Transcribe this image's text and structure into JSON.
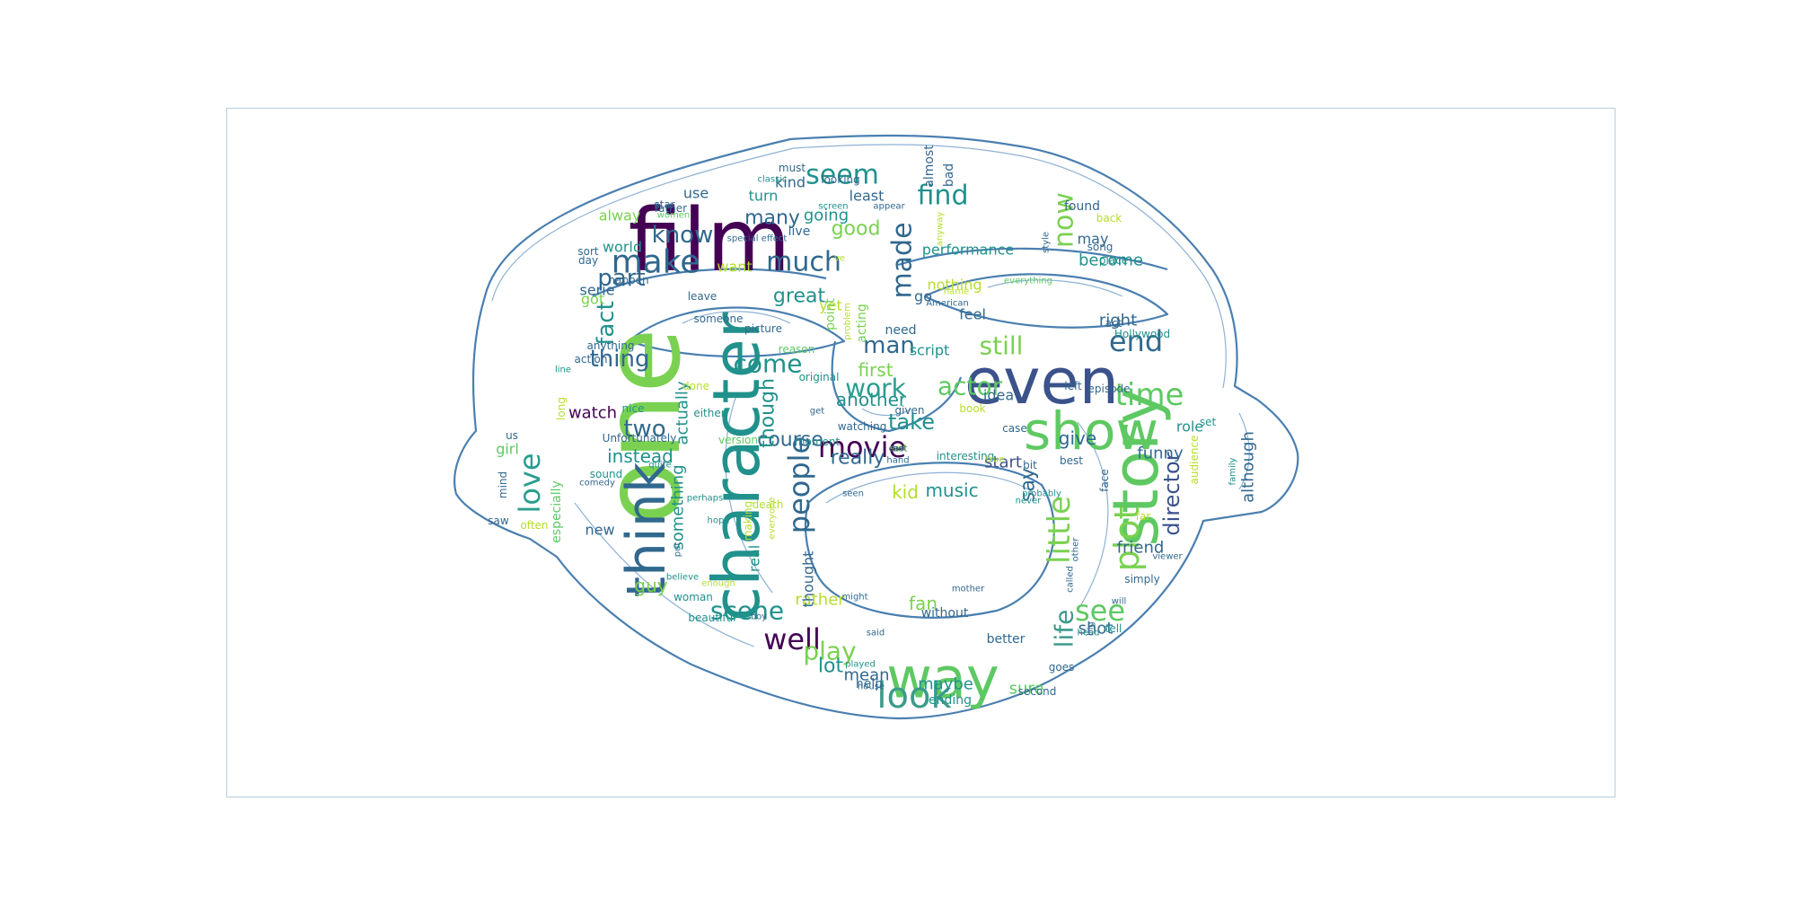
{
  "words": [
    {
      "t": "film",
      "c": "#440154"
    },
    {
      "t": "even",
      "c": "#3b528b"
    },
    {
      "t": "one",
      "c": "#7ad151"
    },
    {
      "t": "character",
      "c": "#21918c"
    },
    {
      "t": "show",
      "c": "#5ec962"
    },
    {
      "t": "way",
      "c": "#5ec962"
    },
    {
      "t": "story",
      "c": "#5ec962"
    },
    {
      "t": "movie",
      "c": "#440154"
    },
    {
      "t": "think",
      "c": "#31688e"
    },
    {
      "t": "look",
      "c": "#3b9b8a"
    },
    {
      "t": "make",
      "c": "#31688e"
    },
    {
      "t": "much",
      "c": "#31688e"
    },
    {
      "t": "plot",
      "c": "#7ad151"
    },
    {
      "t": "well",
      "c": "#440154"
    },
    {
      "t": "seem",
      "c": "#21918c"
    },
    {
      "t": "find",
      "c": "#21918c"
    },
    {
      "t": "know",
      "c": "#31688e"
    },
    {
      "t": "scene",
      "c": "#21918c"
    },
    {
      "t": "time",
      "c": "#5ec962"
    },
    {
      "t": "end",
      "c": "#31688e"
    },
    {
      "t": "work",
      "c": "#2a9d8f"
    },
    {
      "t": "little",
      "c": "#7ad151"
    },
    {
      "t": "see",
      "c": "#5ec962"
    },
    {
      "t": "play",
      "c": "#7ad151"
    },
    {
      "t": "love",
      "c": "#2a9d8f"
    },
    {
      "t": "made",
      "c": "#31688e"
    },
    {
      "t": "people",
      "c": "#31688e"
    },
    {
      "t": "come",
      "c": "#21918c"
    },
    {
      "t": "actor",
      "c": "#5ec962"
    },
    {
      "t": "still",
      "c": "#7ad151"
    },
    {
      "t": "man",
      "c": "#31688e"
    },
    {
      "t": "part",
      "c": "#31688e"
    },
    {
      "t": "now",
      "c": "#7ad151"
    },
    {
      "t": "director",
      "c": "#3b528b"
    },
    {
      "t": "life",
      "c": "#3b9b8a"
    },
    {
      "t": "two",
      "c": "#31688e"
    },
    {
      "t": "take",
      "c": "#21918c"
    },
    {
      "t": "thing",
      "c": "#31688e"
    },
    {
      "t": "great",
      "c": "#21918c"
    },
    {
      "t": "good",
      "c": "#7ad151"
    },
    {
      "t": "many",
      "c": "#31688e"
    },
    {
      "t": "fact",
      "c": "#21918c"
    },
    {
      "t": "lot",
      "c": "#21918c"
    },
    {
      "t": "really",
      "c": "#31688e"
    },
    {
      "t": "course",
      "c": "#31688e"
    },
    {
      "t": "give",
      "c": "#31688e"
    },
    {
      "t": "another",
      "c": "#21918c"
    },
    {
      "t": "first",
      "c": "#7ad151"
    },
    {
      "t": "kid",
      "c": "#b5de2b"
    },
    {
      "t": "music",
      "c": "#21918c"
    },
    {
      "t": "say",
      "c": "#31688e"
    },
    {
      "t": "though",
      "c": "#21918c"
    },
    {
      "t": "performance",
      "c": "#21918c"
    },
    {
      "t": "going",
      "c": "#21918c"
    },
    {
      "t": "funny",
      "c": "#31688e"
    },
    {
      "t": "right",
      "c": "#31688e"
    },
    {
      "t": "become",
      "c": "#21918c"
    },
    {
      "t": "friend",
      "c": "#31688e"
    },
    {
      "t": "instead",
      "c": "#21918c"
    },
    {
      "t": "watch",
      "c": "#440154"
    },
    {
      "t": "something",
      "c": "#21918c"
    },
    {
      "t": "actually",
      "c": "#21918c"
    },
    {
      "t": "maybe",
      "c": "#21918c"
    },
    {
      "t": "sure",
      "c": "#5ec962"
    },
    {
      "t": "start",
      "c": "#3b528b"
    },
    {
      "t": "guy",
      "c": "#7ad151"
    },
    {
      "t": "fan",
      "c": "#7ad151"
    },
    {
      "t": "rather",
      "c": "#b5de2b"
    },
    {
      "t": "shot",
      "c": "#31688e"
    },
    {
      "t": "although",
      "c": "#31688e"
    },
    {
      "t": "mean",
      "c": "#31688e"
    },
    {
      "t": "go",
      "c": "#31688e"
    },
    {
      "t": "feel",
      "c": "#31688e"
    },
    {
      "t": "want",
      "c": "#b5de2b"
    },
    {
      "t": "world",
      "c": "#21918c"
    },
    {
      "t": "alway",
      "c": "#7ad151"
    },
    {
      "t": "kind",
      "c": "#31688e"
    },
    {
      "t": "turn",
      "c": "#21918c"
    },
    {
      "t": "least",
      "c": "#31688e"
    },
    {
      "t": "use",
      "c": "#31688e"
    },
    {
      "t": "nothing",
      "c": "#b5de2b"
    },
    {
      "t": "yet",
      "c": "#b5de2b"
    },
    {
      "t": "script",
      "c": "#21918c"
    },
    {
      "t": "idea",
      "c": "#31688e"
    },
    {
      "t": "role",
      "c": "#21918c"
    },
    {
      "t": "may",
      "c": "#31688e"
    },
    {
      "t": "real",
      "c": "#21918c"
    },
    {
      "t": "thought",
      "c": "#31688e"
    },
    {
      "t": "new",
      "c": "#31688e"
    },
    {
      "t": "girl",
      "c": "#5ec962"
    },
    {
      "t": "especially",
      "c": "#5ec962"
    },
    {
      "t": "serie",
      "c": "#31688e"
    },
    {
      "t": "got",
      "c": "#7ad151"
    },
    {
      "t": "ending",
      "c": "#21918c"
    },
    {
      "t": "without",
      "c": "#31688e"
    },
    {
      "t": "better",
      "c": "#31688e"
    },
    {
      "t": "help",
      "c": "#31688e"
    },
    {
      "t": "need",
      "c": "#31688e"
    },
    {
      "t": "point",
      "c": "#7ad151"
    },
    {
      "t": "acting",
      "c": "#7ad151"
    },
    {
      "t": "almost",
      "c": "#31688e"
    },
    {
      "t": "bad",
      "c": "#31688e"
    },
    {
      "t": "looking",
      "c": "#31688e"
    },
    {
      "t": "must",
      "c": "#31688e"
    },
    {
      "t": "star",
      "c": "#31688e"
    },
    {
      "t": "father",
      "c": "#31688e"
    },
    {
      "t": "live",
      "c": "#31688e"
    },
    {
      "t": "found",
      "c": "#31688e"
    },
    {
      "t": "back",
      "c": "#b5de2b"
    },
    {
      "t": "song",
      "c": "#31688e"
    },
    {
      "t": "place",
      "c": "#21918c"
    },
    {
      "t": "sort",
      "c": "#31688e"
    },
    {
      "t": "day",
      "c": "#31688e"
    },
    {
      "t": "happen",
      "c": "#31688e"
    },
    {
      "t": "leave",
      "c": "#31688e"
    },
    {
      "t": "someone",
      "c": "#31688e"
    },
    {
      "t": "picture",
      "c": "#31688e"
    },
    {
      "t": "reason",
      "c": "#5ec962"
    },
    {
      "t": "original",
      "c": "#21918c"
    },
    {
      "t": "done",
      "c": "#b5de2b"
    },
    {
      "t": "either",
      "c": "#21918c"
    },
    {
      "t": "nice",
      "c": "#21918c"
    },
    {
      "t": "long",
      "c": "#b5de2b"
    },
    {
      "t": "anything",
      "c": "#31688e"
    },
    {
      "t": "action",
      "c": "#31688e"
    },
    {
      "t": "Unfortunately",
      "c": "#31688e"
    },
    {
      "t": "version",
      "c": "#5ec962"
    },
    {
      "t": "moment",
      "c": "#21918c"
    },
    {
      "t": "watching",
      "c": "#31688e"
    },
    {
      "t": "given",
      "c": "#31688e"
    },
    {
      "t": "book",
      "c": "#b5de2b"
    },
    {
      "t": "case",
      "c": "#31688e"
    },
    {
      "t": "interesting",
      "c": "#21918c"
    },
    {
      "t": "bit",
      "c": "#31688e"
    },
    {
      "t": "best",
      "c": "#31688e"
    },
    {
      "t": "face",
      "c": "#31688e"
    },
    {
      "t": "audience",
      "c": "#b5de2b"
    },
    {
      "t": "set",
      "c": "#21918c"
    },
    {
      "t": "left",
      "c": "#31688e"
    },
    {
      "t": "episode",
      "c": "#31688e"
    },
    {
      "t": "act",
      "c": "#31688e"
    },
    {
      "t": "Hollywood",
      "c": "#21918c"
    },
    {
      "t": "everything",
      "c": "#5ec962"
    },
    {
      "t": "name",
      "c": "#b5de2b"
    },
    {
      "t": "American",
      "c": "#31688e"
    },
    {
      "t": "style",
      "c": "#31688e"
    },
    {
      "t": "ve",
      "c": "#b5de2b"
    },
    {
      "t": "special effect",
      "c": "#31688e"
    },
    {
      "t": "screen",
      "c": "#21918c"
    },
    {
      "t": "appear",
      "c": "#31688e"
    },
    {
      "t": "classic",
      "c": "#21918c"
    },
    {
      "t": "women",
      "c": "#5ec962"
    },
    {
      "t": "anyway",
      "c": "#b5de2b"
    },
    {
      "t": "us",
      "c": "#31688e"
    },
    {
      "t": "mind",
      "c": "#31688e"
    },
    {
      "t": "saw",
      "c": "#31688e"
    },
    {
      "t": "sound",
      "c": "#21918c"
    },
    {
      "t": "comedy",
      "c": "#31688e"
    },
    {
      "t": "quite",
      "c": "#21918c"
    },
    {
      "t": "perhaps",
      "c": "#21918c"
    },
    {
      "t": "hope",
      "c": "#21918c"
    },
    {
      "t": "often",
      "c": "#b5de2b"
    },
    {
      "t": "making",
      "c": "#b5de2b"
    },
    {
      "t": "death",
      "c": "#b5de2b"
    },
    {
      "t": "everyone",
      "c": "#b5de2b"
    },
    {
      "t": "put",
      "c": "#31688e"
    },
    {
      "t": "believe",
      "c": "#21918c"
    },
    {
      "t": "enough",
      "c": "#b5de2b"
    },
    {
      "t": "woman",
      "c": "#21918c"
    },
    {
      "t": "beautiful",
      "c": "#21918c"
    },
    {
      "t": "boy",
      "c": "#31688e"
    },
    {
      "t": "said",
      "c": "#31688e"
    },
    {
      "t": "played",
      "c": "#21918c"
    },
    {
      "t": "house",
      "c": "#31688e"
    },
    {
      "t": "might",
      "c": "#31688e"
    },
    {
      "t": "mother",
      "c": "#31688e"
    },
    {
      "t": "second",
      "c": "#31688e"
    },
    {
      "t": "goes",
      "c": "#31688e"
    },
    {
      "t": "head",
      "c": "#21918c"
    },
    {
      "t": "tell",
      "c": "#21918c"
    },
    {
      "t": "will",
      "c": "#31688e"
    },
    {
      "t": "called",
      "c": "#31688e"
    },
    {
      "t": "other",
      "c": "#31688e"
    },
    {
      "t": "never",
      "c": "#21918c"
    },
    {
      "t": "probably",
      "c": "#21918c"
    },
    {
      "t": "viewer",
      "c": "#31688e"
    },
    {
      "t": "simply",
      "c": "#31688e"
    },
    {
      "t": "far",
      "c": "#b5de2b"
    },
    {
      "t": "family",
      "c": "#21918c"
    },
    {
      "t": "hand",
      "c": "#31688e"
    },
    {
      "t": "seen",
      "c": "#31688e"
    },
    {
      "t": "problem",
      "c": "#b5de2b"
    },
    {
      "t": "true",
      "c": "#b5de2b"
    },
    {
      "t": "big",
      "c": "#31688e"
    },
    {
      "t": "line",
      "c": "#21918c"
    },
    {
      "t": "get",
      "c": "#31688e"
    },
    {
      "t": "self",
      "c": "#b5de2b"
    },
    {
      "t": "bo",
      "c": "#31688e"
    },
    {
      "t": "cast",
      "c": "#31688e"
    }
  ]
}
